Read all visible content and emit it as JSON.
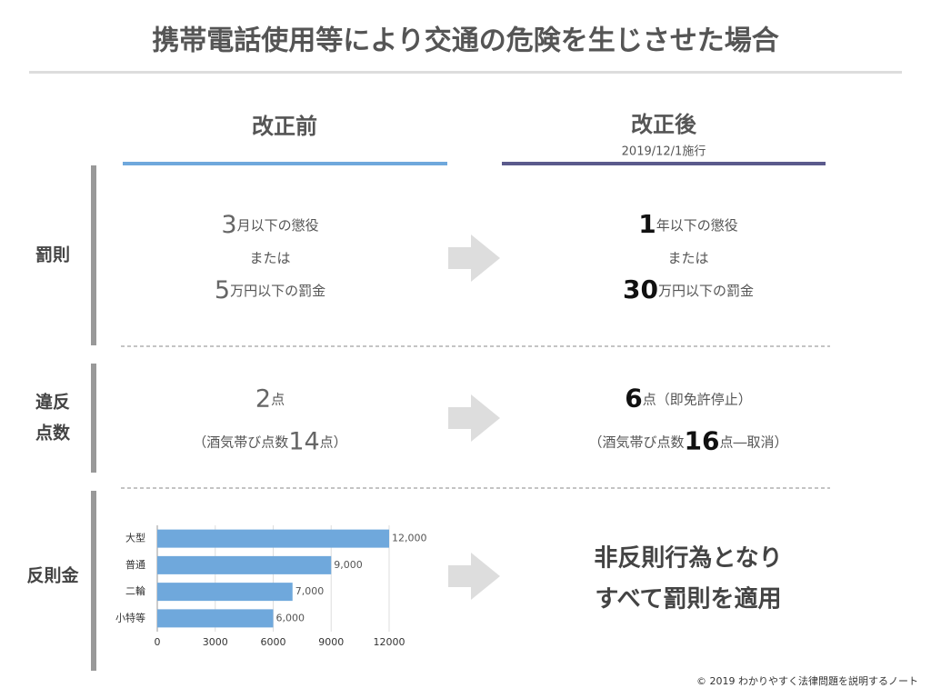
{
  "title": "携帯電話使用等により交通の危険を生じさせた場合",
  "columns": {
    "before": "改正前",
    "after": "改正後",
    "after_note": "2019/12/1施行"
  },
  "rows": [
    {
      "label": [
        "罰則"
      ],
      "before": [
        [
          {
            "text": "3",
            "style": "large"
          },
          "月以下の懲役"
        ],
        [
          "または"
        ],
        [
          {
            "text": "5",
            "style": "large"
          },
          "万円以下の罰金"
        ]
      ],
      "after": [
        [
          {
            "text": "1",
            "style": "bold"
          },
          "年以下の懲役"
        ],
        [
          "または"
        ],
        [
          {
            "text": "30",
            "style": "bold"
          },
          "万円以下の罰金"
        ]
      ]
    },
    {
      "label": [
        "違反",
        "点数"
      ],
      "before": [
        [
          {
            "text": "2",
            "style": "large"
          },
          "点"
        ],
        [
          "（酒気帯び点数",
          {
            "text": "14",
            "style": "large"
          },
          "点）"
        ]
      ],
      "after": [
        [
          {
            "text": "6",
            "style": "bold"
          },
          "点（即免許停止）"
        ],
        [
          "（酒気帯び点数",
          {
            "text": "16",
            "style": "bold"
          },
          "点―取消）"
        ]
      ]
    },
    {
      "label": [
        "反則金"
      ],
      "after": [
        [
          {
            "text": "非反則行為となり",
            "style": "headline"
          }
        ],
        [
          {
            "text": "すべて罰則を適用",
            "style": "headline"
          }
        ]
      ]
    }
  ],
  "chart_data": {
    "type": "barh",
    "categories": [
      "大型",
      "普通",
      "二輪",
      "小特等"
    ],
    "values": [
      12000,
      9000,
      7000,
      6000
    ],
    "value_labels": [
      "12,000",
      "9,000",
      "7,000",
      "6,000"
    ],
    "color": "#6fa8dc",
    "xlim": [
      0,
      12000
    ],
    "xticks": [
      0,
      3000,
      6000,
      9000,
      12000
    ],
    "grid": true
  },
  "footer": "© 2019 わかりやすく法律問題を説明するノート"
}
